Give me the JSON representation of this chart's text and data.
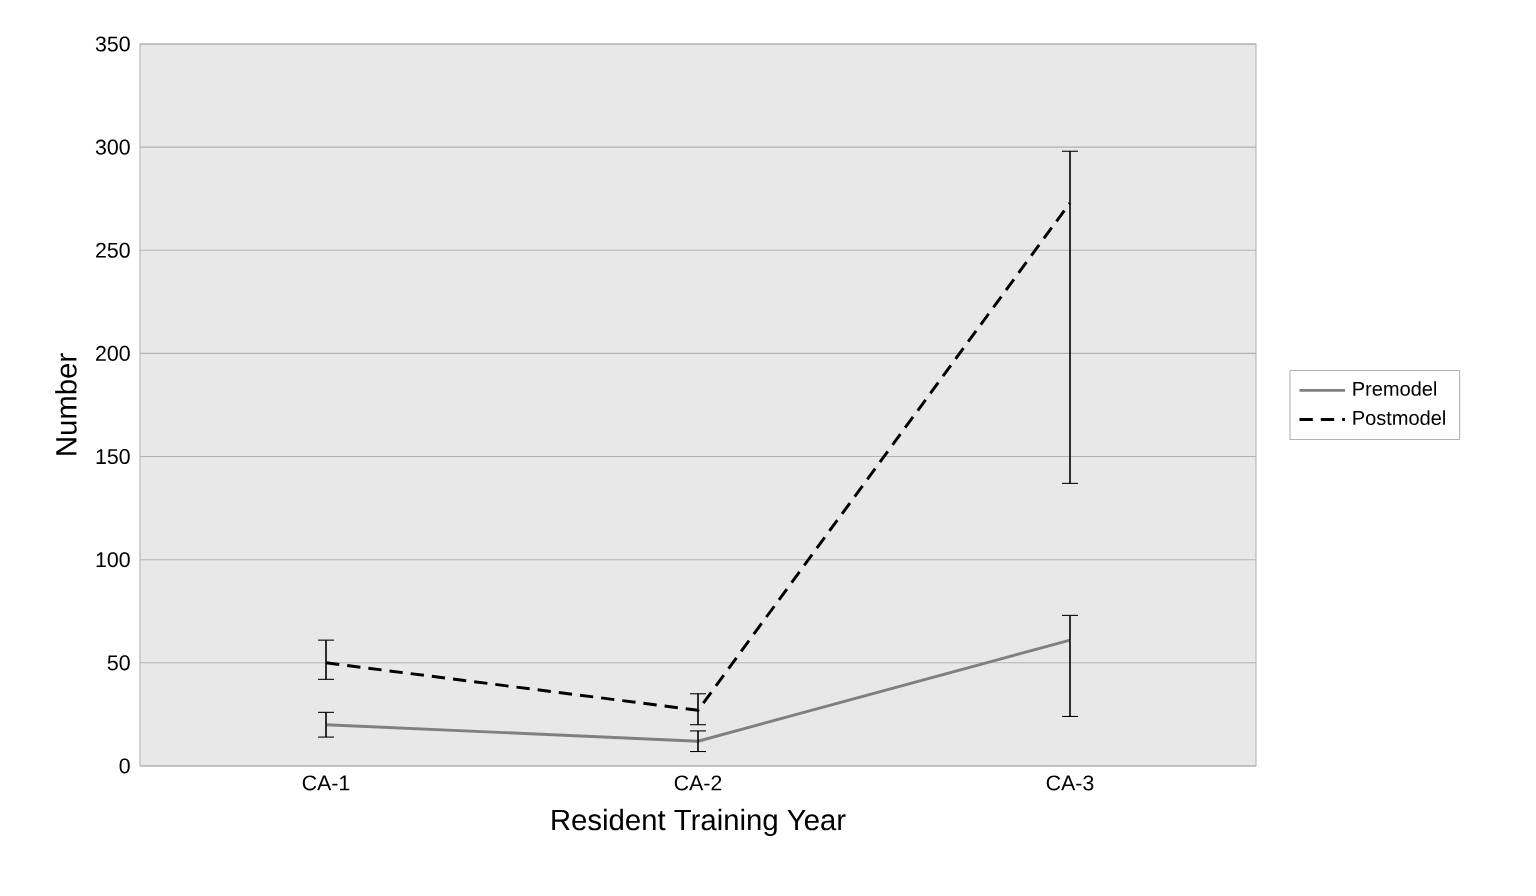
{
  "chart_data": {
    "type": "line",
    "xlabel": "Resident Training Year",
    "ylabel": "Number",
    "categories": [
      "CA-1",
      "CA-2",
      "CA-3"
    ],
    "series": [
      {
        "name": "Premodel",
        "color": "#808080",
        "line_style": "solid",
        "values": [
          20,
          12,
          61
        ],
        "errors": [
          [
            14,
            26
          ],
          [
            7,
            17
          ],
          [
            24,
            73
          ]
        ]
      },
      {
        "name": "Postmodel",
        "color": "#000000",
        "line_style": "dashed",
        "values": [
          50,
          27,
          273
        ],
        "errors": [
          [
            42,
            61
          ],
          [
            20,
            35
          ],
          [
            137,
            298
          ]
        ]
      }
    ],
    "ylim": [
      0,
      350
    ],
    "yticks": [
      0,
      50,
      100,
      150,
      200,
      250,
      300,
      350
    ],
    "grid": "y",
    "legend": "right",
    "marker": "none"
  }
}
